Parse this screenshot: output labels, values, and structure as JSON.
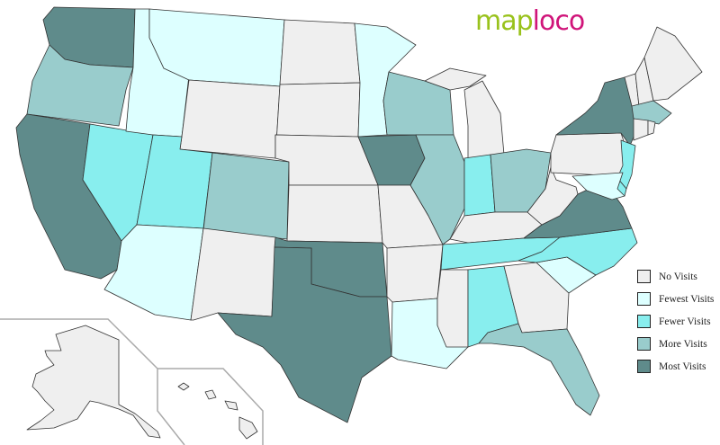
{
  "logo": {
    "part1": "map",
    "part2": "loco"
  },
  "colors": {
    "none": "#efefef",
    "fewest": "#ddffff",
    "fewer": "#88eeee",
    "more": "#99cccc",
    "most": "#5f8b8b"
  },
  "legend": [
    {
      "key": "none",
      "label": "No Visits"
    },
    {
      "key": "fewest",
      "label": "Fewest Visits"
    },
    {
      "key": "fewer",
      "label": "Fewer Visits"
    },
    {
      "key": "more",
      "label": "More Visits"
    },
    {
      "key": "most",
      "label": "Most Visits"
    }
  ],
  "states": {
    "WA": "most",
    "OR": "more",
    "CA": "most",
    "NV": "fewer",
    "ID": "fewest",
    "MT": "fewest",
    "WY": "none",
    "UT": "fewer",
    "CO": "more",
    "AZ": "fewest",
    "NM": "none",
    "ND": "none",
    "SD": "none",
    "NE": "none",
    "KS": "none",
    "OK": "most",
    "TX": "most",
    "MN": "fewest",
    "IA": "most",
    "MO": "none",
    "AR": "none",
    "LA": "fewest",
    "WI": "more",
    "IL": "more",
    "MI": "none",
    "IN": "fewer",
    "OH": "more",
    "KY": "none",
    "TN": "fewer",
    "MS": "none",
    "AL": "fewer",
    "GA": "none",
    "FL": "more",
    "SC": "fewest",
    "NC": "fewer",
    "VA": "most",
    "WV": "none",
    "PA": "none",
    "NY": "most",
    "NJ": "fewer",
    "DE": "fewer",
    "MD": "fewest",
    "VT": "none",
    "NH": "none",
    "ME": "none",
    "MA": "more",
    "CT": "none",
    "RI": "none",
    "AK": "none",
    "HI": "none"
  }
}
